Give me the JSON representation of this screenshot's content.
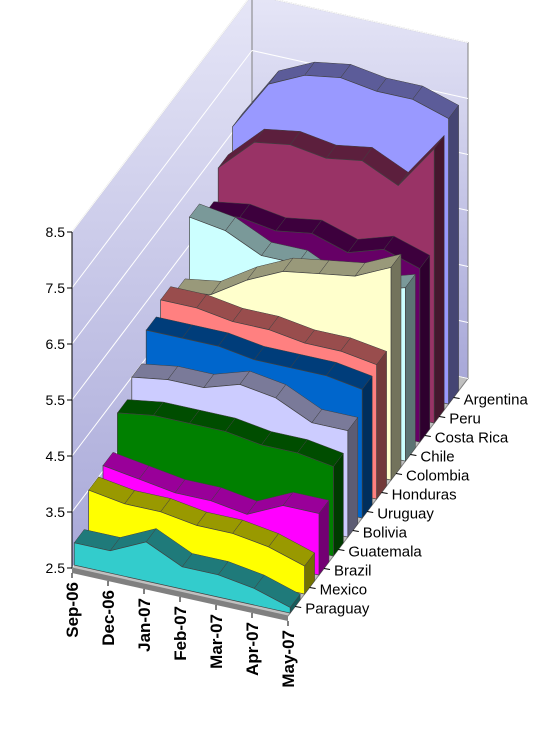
{
  "chart_data": {
    "type": "area3d",
    "categories": [
      "Sep-06",
      "Dec-06",
      "Jan-07",
      "Feb-07",
      "Mar-07",
      "Apr-07",
      "May-07"
    ],
    "ylim": [
      2.5,
      8.5
    ],
    "yticks": [
      2.5,
      3.5,
      4.5,
      5.5,
      6.5,
      7.5,
      8.5
    ],
    "grid": true,
    "series": [
      {
        "name": "Paraguay",
        "color": "#33cccc",
        "values": [
          2.9,
          2.9,
          3.2,
          2.9,
          2.9,
          2.8,
          2.6
        ]
      },
      {
        "name": "Mexico",
        "color": "#ffff00",
        "values": [
          3.5,
          3.4,
          3.4,
          3.3,
          3.3,
          3.2,
          3.0
        ]
      },
      {
        "name": "Brazil",
        "color": "#ff00ff",
        "values": [
          3.6,
          3.5,
          3.4,
          3.4,
          3.3,
          3.6,
          3.6
        ]
      },
      {
        "name": "Guatemala",
        "color": "#008000",
        "values": [
          4.2,
          4.3,
          4.3,
          4.3,
          4.2,
          4.2,
          4.1
        ]
      },
      {
        "name": "Bolivia",
        "color": "#ccccff",
        "values": [
          4.5,
          4.6,
          4.6,
          4.8,
          4.7,
          4.4,
          4.4
        ]
      },
      {
        "name": "Uruguay",
        "color": "#0066cc",
        "values": [
          5.0,
          5.0,
          5.0,
          4.9,
          4.9,
          4.9,
          4.8
        ]
      },
      {
        "name": "Honduras",
        "color": "#ff8080",
        "values": [
          5.2,
          5.2,
          5.1,
          5.1,
          5.0,
          5.0,
          4.9
        ]
      },
      {
        "name": "Colombia",
        "color": "#ffffcc",
        "values": [
          5.0,
          5.1,
          5.5,
          5.8,
          5.9,
          6.0,
          6.3
        ]
      },
      {
        "name": "Chile",
        "color": "#ccffff",
        "values": [
          6.0,
          5.9,
          5.6,
          5.6,
          5.3,
          5.4,
          5.6
        ]
      },
      {
        "name": "Costa Rica",
        "color": "#660066",
        "values": [
          5.7,
          5.8,
          5.7,
          5.8,
          5.6,
          5.8,
          5.6
        ]
      },
      {
        "name": "Peru",
        "color": "#993366",
        "values": [
          6.2,
          6.8,
          6.9,
          6.8,
          6.9,
          6.6,
          7.4
        ]
      },
      {
        "name": "Argentina",
        "color": "#9999ff",
        "values": [
          6.6,
          7.5,
          7.8,
          7.9,
          7.8,
          7.8,
          7.6
        ]
      }
    ]
  }
}
